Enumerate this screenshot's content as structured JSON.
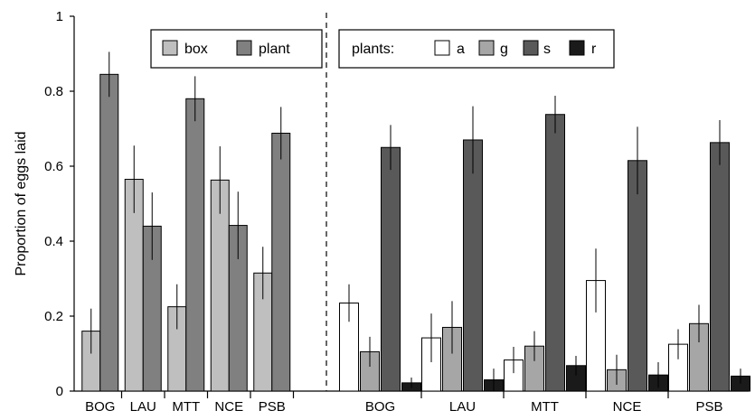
{
  "chart_data": {
    "type": "bar",
    "ylabel": "Proportion of eggs laid",
    "ylim": [
      0,
      1
    ],
    "yticks": [
      "0",
      "0.2",
      "0.4",
      "0.6",
      "0.8",
      "1"
    ],
    "ytick_values": [
      0,
      0.2,
      0.4,
      0.6,
      0.8,
      1
    ],
    "grid": false,
    "panels": [
      {
        "legend_title": "",
        "legend_position": "top",
        "categories": [
          "BOG",
          "LAU",
          "MTT",
          "NCE",
          "PSB"
        ],
        "series": [
          {
            "name": "box",
            "color": "#bfbfbf",
            "values": [
              0.16,
              0.565,
              0.225,
              0.563,
              0.315
            ],
            "err": [
              0.06,
              0.09,
              0.06,
              0.09,
              0.07
            ]
          },
          {
            "name": "plant",
            "color": "#808080",
            "values": [
              0.845,
              0.44,
              0.78,
              0.442,
              0.688
            ],
            "err": [
              0.06,
              0.09,
              0.06,
              0.09,
              0.07
            ]
          }
        ]
      },
      {
        "legend_title": "plants:",
        "legend_position": "top-right",
        "categories": [
          "BOG",
          "LAU",
          "MTT",
          "NCE",
          "PSB"
        ],
        "series": [
          {
            "name": "a",
            "color": "#ffffff",
            "values": [
              0.235,
              0.142,
              0.083,
              0.295,
              0.125
            ],
            "err": [
              0.05,
              0.065,
              0.035,
              0.085,
              0.04
            ]
          },
          {
            "name": "g",
            "color": "#a6a6a6",
            "values": [
              0.105,
              0.17,
              0.12,
              0.057,
              0.18
            ],
            "err": [
              0.04,
              0.07,
              0.04,
              0.04,
              0.05
            ]
          },
          {
            "name": "s",
            "color": "#595959",
            "values": [
              0.65,
              0.67,
              0.738,
              0.615,
              0.663
            ],
            "err": [
              0.06,
              0.09,
              0.05,
              0.09,
              0.06
            ]
          },
          {
            "name": "r",
            "color": "#1a1a1a",
            "values": [
              0.022,
              0.03,
              0.068,
              0.043,
              0.04
            ],
            "err": [
              0.014,
              0.03,
              0.026,
              0.034,
              0.02
            ]
          }
        ]
      }
    ]
  }
}
